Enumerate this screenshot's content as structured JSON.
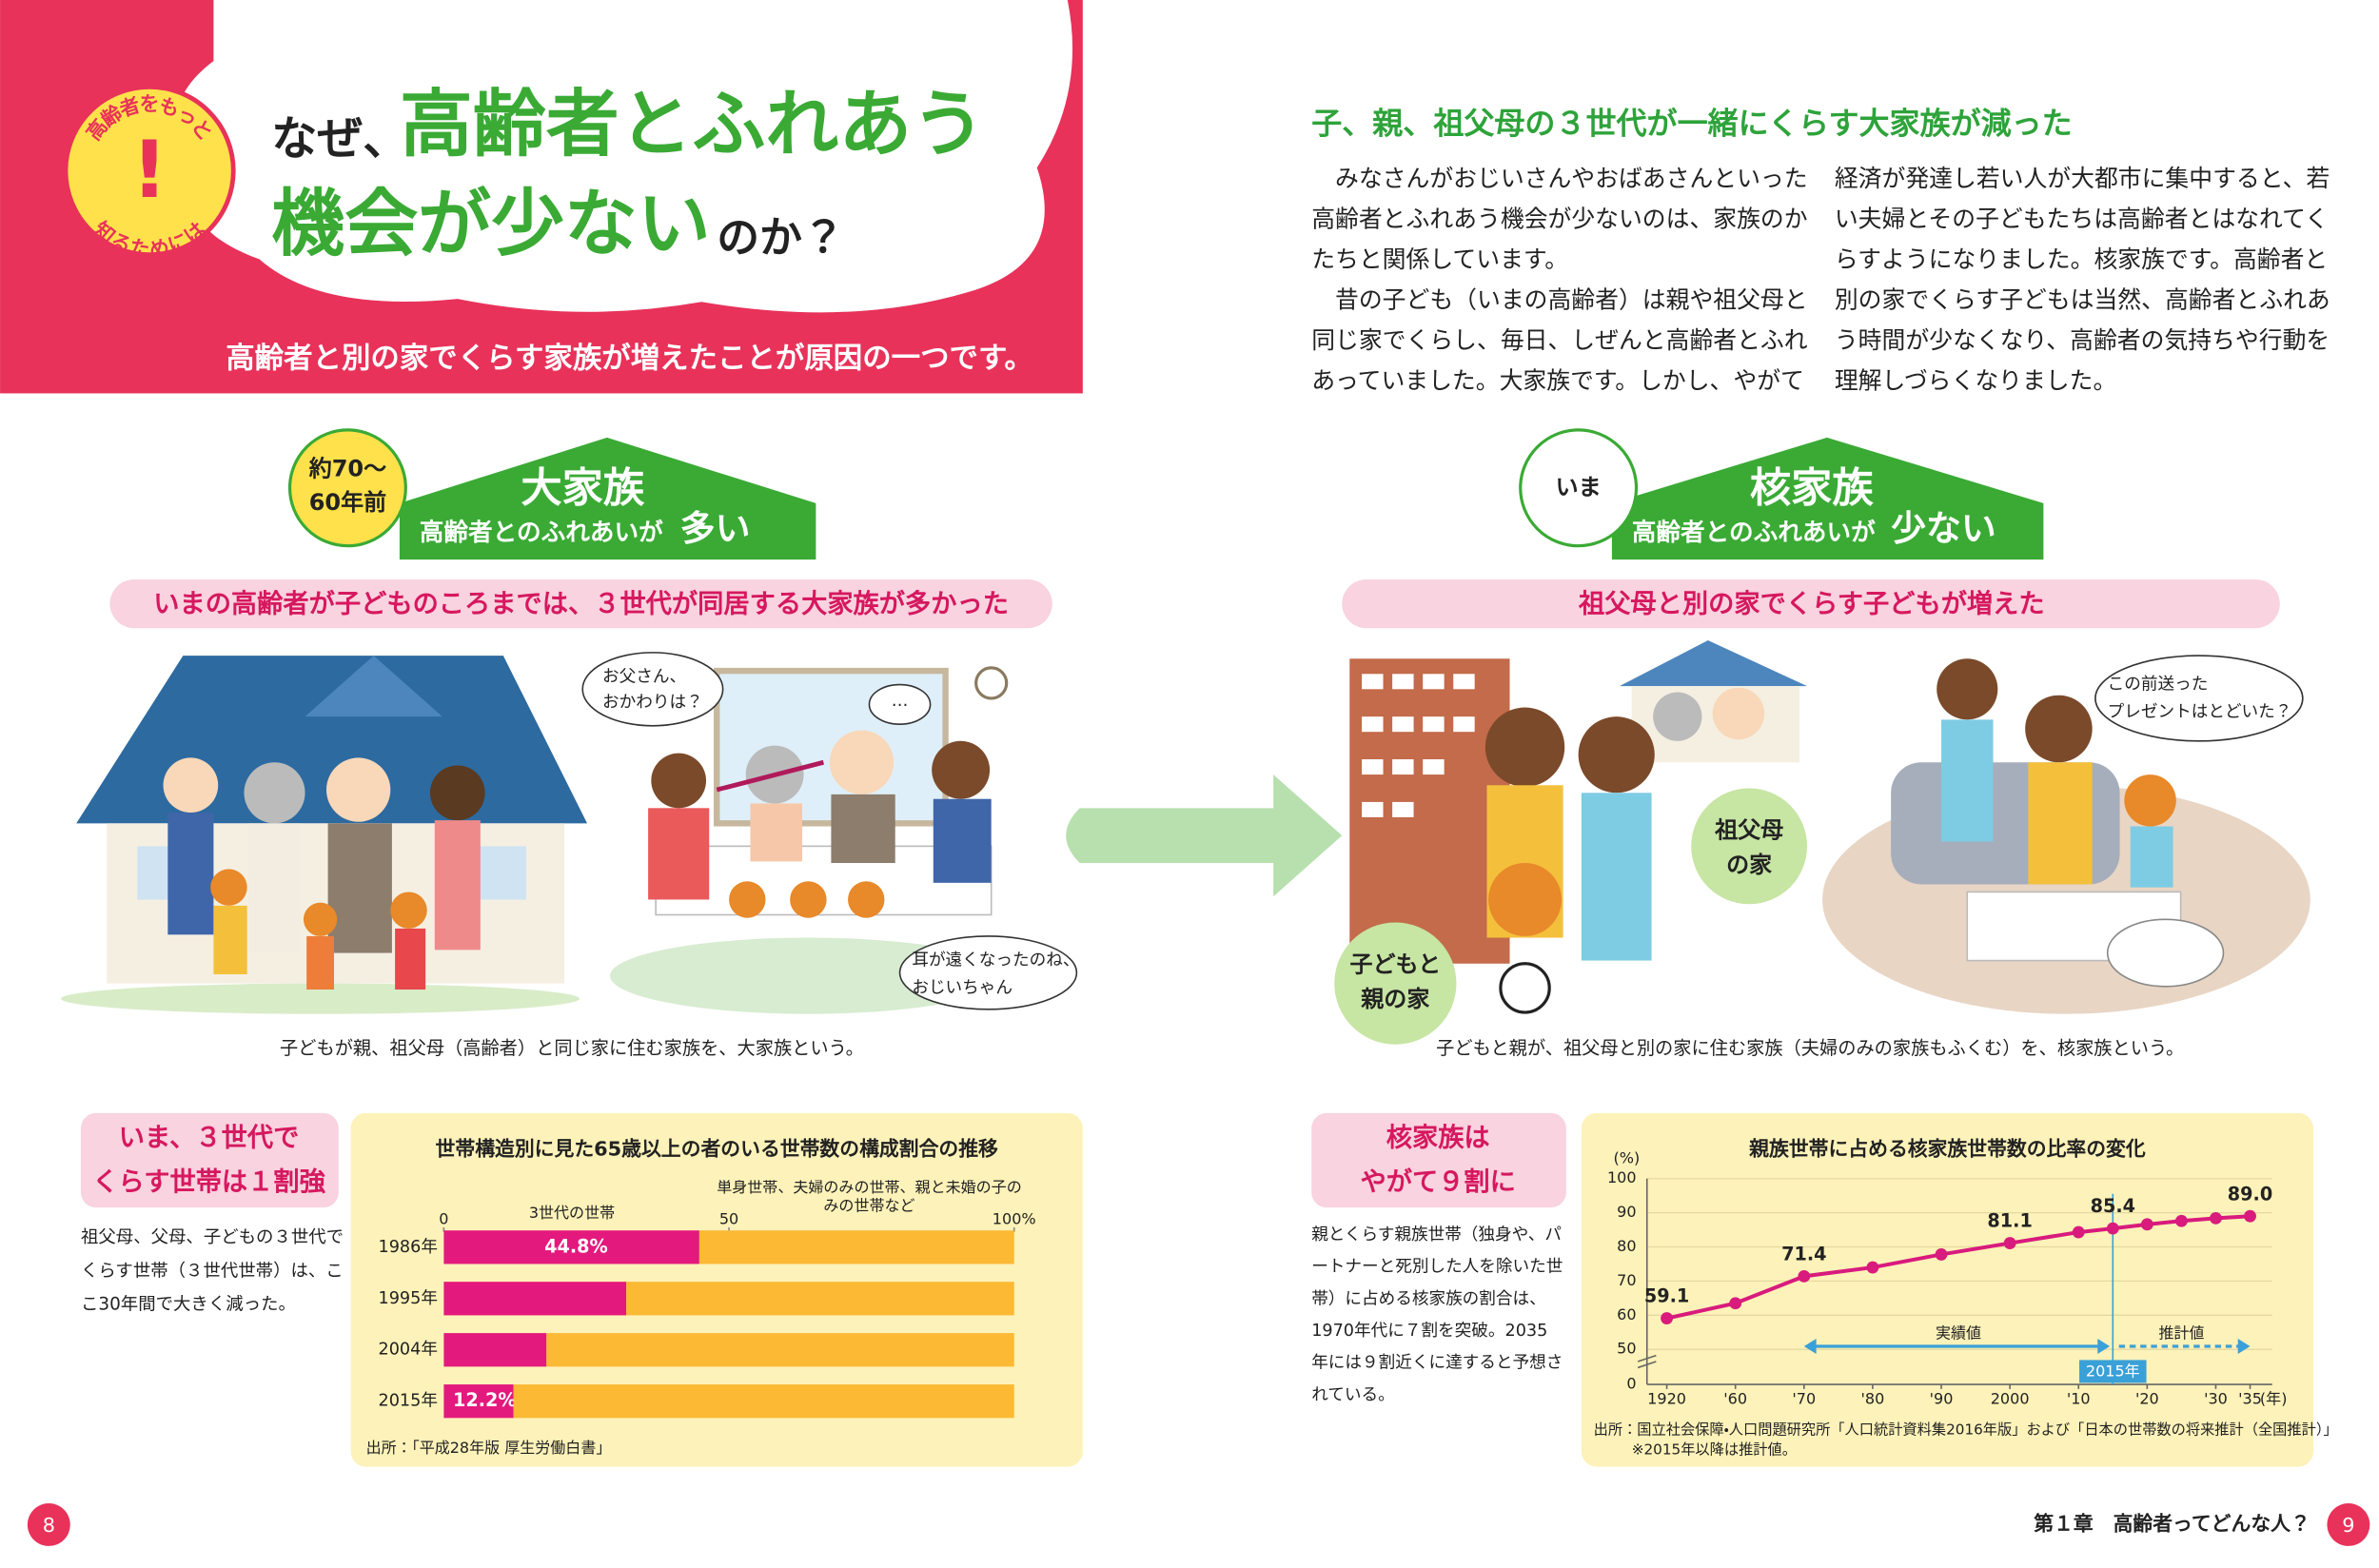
{
  "left_page": {
    "badge": [
      "高齢者をもっと",
      "知るためには"
    ],
    "title": {
      "lead": "なぜ、",
      "line1": "高齢者とふれあう",
      "line2": "機会が少ない",
      "tail": "のか？"
    },
    "subtitle": "高齢者と別の家でくらす家族が増えたことが原因の一つです。",
    "era_tag": [
      "約70～",
      "60年前"
    ],
    "heading": "大家族",
    "heading_sub": [
      "高齢者とのふれあいが",
      "多い"
    ],
    "banner": "いまの高齢者が子どものころまでは、３世代が同居する大家族が多かった",
    "bubbles": [
      [
        "お父さん、",
        "おかわりは？"
      ],
      [
        "…"
      ],
      [
        "耳が遠くなったのね、",
        "おじいちゃん"
      ]
    ],
    "caption": "子どもが親、祖父母（高齢者）と同じ家に住む家族を、大家族という。",
    "note_title": [
      "いま、３世代で",
      "くらす世帯は１割強"
    ],
    "note_text": [
      "祖父母、父母、子どもの３世代で",
      "くらす世帯（３世代世帯）は、こ",
      "こ30年間で大きく減った。"
    ],
    "page_number": "8"
  },
  "right_page": {
    "heading": "子、親、祖父母の３世代が一緒にくらす大家族が減った",
    "column1": [
      "　みなさんがおじいさんやおばあさんといった",
      "高齢者とふれあう機会が少ないのは、家族のか",
      "たちと関係しています。",
      "　昔の子ども（いまの高齢者）は親や祖父母と",
      "同じ家でくらし、毎日、しぜんと高齢者とふれ",
      "あっていました。大家族です。しかし、やがて"
    ],
    "column2": [
      "経済が発達し若い人が大都市に集中すると、若",
      "い夫婦とその子どもたちは高齢者とはなれてく",
      "らすようになりました。核家族です。高齢者と",
      "別の家でくらす子どもは当然、高齢者とふれあ",
      "う時間が少なくなり、高齢者の気持ちや行動を",
      "理解しづらくなりました。"
    ],
    "era_tag": "いま",
    "heading2": "核家族",
    "heading2_sub": [
      "高齢者とのふれあいが",
      "少ない"
    ],
    "banner": "祖父母と別の家でくらす子どもが増えた",
    "labels": [
      [
        "祖父母",
        "の家"
      ],
      [
        "子どもと",
        "親の家"
      ]
    ],
    "bubble": [
      "この前送った",
      "プレゼントはとどいた？"
    ],
    "caption": "子どもと親が、祖父母と別の家に住む家族（夫婦のみの家族もふくむ）を、核家族という。",
    "note_title": [
      "核家族は",
      "やがて９割に"
    ],
    "note_text": [
      "親とくらす親族世帯（独身や、パ",
      "ートナーと死別した人を除いた世",
      "帯）に占める核家族の割合は、",
      "1970年代に７割を突破。2035",
      "年には９割近くに達すると予想さ",
      "れている。"
    ],
    "footer": "第１章　高齢者ってどんな人？",
    "page_number": "9"
  },
  "chart_data": [
    {
      "type": "bar",
      "orientation": "horizontal",
      "stacked": true,
      "title": "世帯構造別に見た65歳以上の者のいる世帯数の構成割合の推移",
      "categories": [
        "1986年",
        "1995年",
        "2004年",
        "2015年"
      ],
      "xlim": [
        0,
        100
      ],
      "xticks": [
        0,
        50,
        {
          "value": 100,
          "label": "100%"
        }
      ],
      "series": [
        {
          "name": "3世代の世帯",
          "color": "#e4197d",
          "values": [
            44.8,
            32,
            18,
            12.2
          ],
          "value_labels": [
            "44.8%",
            null,
            null,
            "12.2%"
          ]
        },
        {
          "name": "単身世帯、夫婦のみの世帯、親と未婚の子のみの世帯など",
          "color": "#fbb934",
          "values": [
            55.2,
            68,
            82,
            87.8
          ]
        }
      ],
      "source": "出所：「平成28年版 厚生労働白書」"
    },
    {
      "type": "line",
      "title": "親族世帯に占める核家族世帯数の比率の変化",
      "x": [
        1920,
        1960,
        1970,
        1980,
        1990,
        2000,
        2010,
        2015,
        2020,
        2025,
        2030,
        2035
      ],
      "values": [
        59.1,
        63.5,
        71.4,
        74.0,
        77.8,
        81.1,
        84.3,
        85.4,
        86.6,
        87.6,
        88.4,
        89.0
      ],
      "value_labels": [
        "59.1",
        null,
        "71.4",
        null,
        null,
        "81.1",
        null,
        "85.4",
        null,
        null,
        null,
        "89.0"
      ],
      "color": "#d81b7d",
      "xlabel": "(年)",
      "ylabel": "(%)",
      "xticks": [
        1920,
        {
          "value": 1960,
          "label": "'60"
        },
        {
          "value": 1970,
          "label": "'70"
        },
        {
          "value": 1980,
          "label": "'80"
        },
        {
          "value": 1990,
          "label": "'90"
        },
        2000,
        {
          "value": 2010,
          "label": "'10"
        },
        {
          "value": 2020,
          "label": "'20"
        },
        {
          "value": 2030,
          "label": "'30"
        },
        {
          "value": 2035,
          "label": "'35"
        }
      ],
      "ylim": [
        0,
        100
      ],
      "yticks": [
        0,
        50,
        60,
        70,
        80,
        90,
        100
      ],
      "grid": true,
      "annotations": [
        {
          "text": "実績値"
        },
        {
          "text": "推計値"
        },
        {
          "text": "2015年",
          "x": 2015
        }
      ],
      "source": [
        "出所：国立社会保障・人口問題研究所「人口統計資料集2016年版」および「日本の世帯数の将来推計（全国推計）」",
        "※2015年以降は推計値。"
      ]
    }
  ]
}
